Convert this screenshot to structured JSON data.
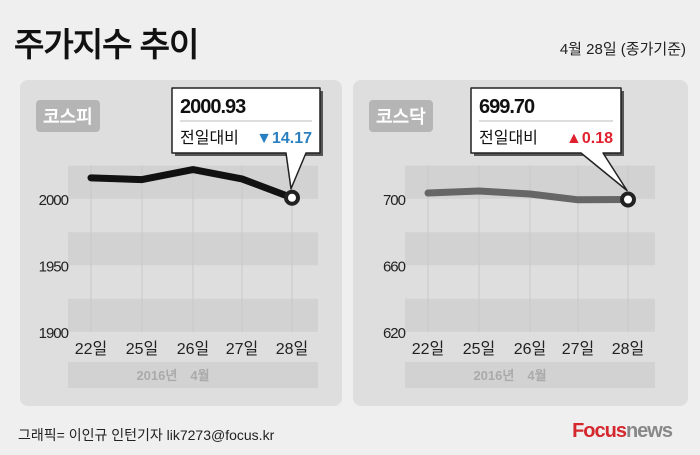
{
  "header": {
    "title": "주가지수 추이",
    "date": "4월 28일 (종가기준)"
  },
  "footer": {
    "credit": "그래픽= 이인규 인턴기자 lik7273@focus.kr",
    "logo_brand": "Focus",
    "logo_suffix": "news"
  },
  "colors": {
    "down": "#2a7fc1",
    "up": "#e0202e",
    "kospi_line": "#111111",
    "kosdaq_line": "#666666"
  },
  "chart_data": [
    {
      "type": "line",
      "badge": "코스피",
      "categories": [
        "22일",
        "25일",
        "26일",
        "27일",
        "28일"
      ],
      "values": [
        2015.9,
        2014.6,
        2022.1,
        2015.1,
        2000.93
      ],
      "yticks": [
        "1900",
        "1950",
        "2000"
      ],
      "ylim": [
        1900,
        2025
      ],
      "xlabel": "2016년　4월",
      "callout": {
        "value": "2000.93",
        "label": "전일대비",
        "change": "14.17",
        "direction": "down",
        "symbol": "▼"
      }
    },
    {
      "type": "line",
      "badge": "코스닥",
      "categories": [
        "22일",
        "25일",
        "26일",
        "27일",
        "28일"
      ],
      "values": [
        703.6,
        704.8,
        703.0,
        699.52,
        699.7
      ],
      "yticks": [
        "620",
        "660",
        "700"
      ],
      "ylim": [
        620,
        720
      ],
      "xlabel": "2016년　4월",
      "callout": {
        "value": "699.70",
        "label": "전일대비",
        "change": "0.18",
        "direction": "up",
        "symbol": "▲"
      }
    }
  ]
}
